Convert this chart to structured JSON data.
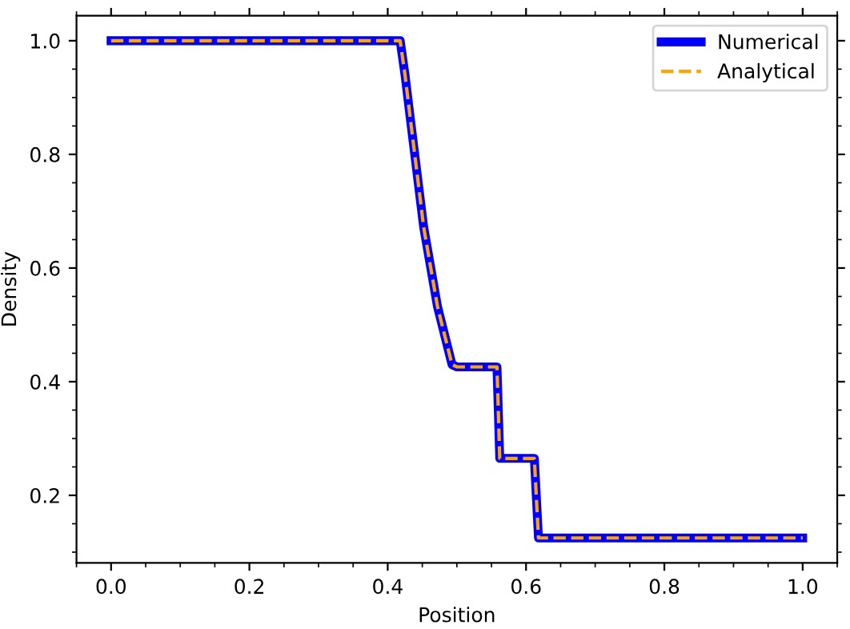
{
  "chart_data": {
    "type": "line",
    "xlabel": "Position",
    "ylabel": "Density",
    "series": [
      {
        "name": "Numerical",
        "color": "#0000ff",
        "line_style": "solid",
        "x": [
          0.0,
          0.418,
          0.425,
          0.433,
          0.452,
          0.472,
          0.493,
          0.5,
          0.558,
          0.562,
          0.612,
          0.618,
          1.0
        ],
        "values": [
          1.0,
          1.0,
          0.94,
          0.86,
          0.672,
          0.532,
          0.43,
          0.426,
          0.426,
          0.265,
          0.265,
          0.125,
          0.125
        ]
      },
      {
        "name": "Analytical",
        "color": "#ffa500",
        "line_style": "dashed",
        "x": [
          0.0,
          0.418,
          0.425,
          0.433,
          0.452,
          0.472,
          0.493,
          0.5,
          0.558,
          0.562,
          0.612,
          0.618,
          1.0
        ],
        "values": [
          1.0,
          1.0,
          0.94,
          0.86,
          0.672,
          0.532,
          0.43,
          0.426,
          0.426,
          0.265,
          0.265,
          0.125,
          0.125
        ]
      }
    ],
    "xlim": [
      -0.05,
      1.05
    ],
    "ylim": [
      0.081,
      1.044
    ],
    "xticks": [
      {
        "value": 0,
        "label": "0.0"
      },
      0.2,
      0.4,
      0.6,
      0.8,
      {
        "value": 1,
        "label": "1.0"
      }
    ],
    "yticks": [
      0.2,
      0.4,
      0.6,
      0.8,
      {
        "value": 1,
        "label": "1.0"
      }
    ],
    "legend": "top right",
    "grid": false,
    "marker": "none"
  }
}
